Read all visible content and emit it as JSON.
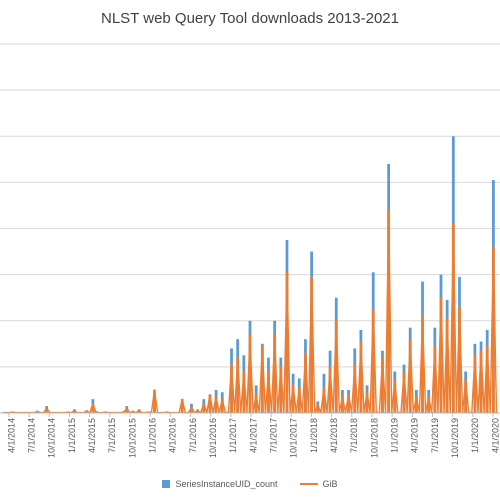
{
  "chart_data": {
    "type": "bar",
    "title": "NLST web Query Tool downloads 2013-2021",
    "x_tick_labels": [
      "4/1/2014",
      "7/1/2014",
      "10/1/2014",
      "1/1/2015",
      "4/1/2015",
      "7/1/2015",
      "10/1/2015",
      "1/1/2016",
      "4/1/2016",
      "7/1/2016",
      "10/1/2016",
      "1/1/2017",
      "4/1/2017",
      "7/1/2017",
      "10/1/2017",
      "1/1/2018",
      "4/1/2018",
      "7/1/2018",
      "10/1/2018",
      "1/1/2019",
      "4/1/2019",
      "7/1/2019",
      "10/1/2019",
      "1/1/2020",
      "4/1/2020"
    ],
    "ylim": [
      0,
      8
    ],
    "y_gridlines": [
      1,
      2,
      3,
      4,
      5,
      6,
      7,
      8
    ],
    "grid": true,
    "legend_position": "bottom",
    "colors": {
      "bar": "#5b9bd5",
      "line": "#ed7d31",
      "grid": "#d9d9d9",
      "axis": "#bfbfbf"
    },
    "series": [
      {
        "name": "SeriesInstanceUID_count",
        "kind": "bar",
        "values": [
          0.02,
          0.02,
          0.02,
          0.03,
          0.02,
          0.02,
          0.02,
          0.02,
          0.02,
          0.02,
          0.02,
          0.05,
          0.02,
          0.02,
          0.15,
          0.02,
          0.02,
          0.02,
          0.02,
          0.02,
          0.02,
          0.03,
          0.02,
          0.08,
          0.02,
          0.02,
          0.02,
          0.06,
          0.02,
          0.3,
          0.04,
          0.02,
          0.02,
          0.03,
          0.02,
          0.02,
          0.02,
          0.02,
          0.02,
          0.04,
          0.15,
          0.02,
          0.05,
          0.02,
          0.08,
          0.02,
          0.02,
          0.03,
          0.02,
          0.15,
          0.02,
          0.02,
          0.02,
          0.03,
          0.02,
          0.02,
          0.02,
          0.02,
          0.04,
          0.02,
          0.02,
          0.2,
          0.02,
          0.08,
          0.02,
          0.3,
          0.02,
          0.35,
          0.02,
          0.5,
          0.02,
          0.45,
          0.02,
          0.03,
          1.4,
          0.02,
          1.6,
          0.02,
          1.25,
          0.02,
          2.0,
          0.02,
          0.6,
          0.02,
          1.5,
          0.02,
          1.2,
          0.02,
          2.0,
          0.02,
          1.2,
          0.02,
          3.75,
          0.02,
          0.85,
          0.02,
          0.75,
          0.02,
          1.6,
          0.02,
          3.5,
          0.02,
          0.25,
          0.02,
          0.85,
          0.02,
          1.35,
          0.02,
          2.5,
          0.02,
          0.5,
          0.02,
          0.5,
          0.02,
          1.4,
          0.02,
          1.8,
          0.02,
          0.6,
          0.02,
          3.05,
          0.02,
          0.02,
          1.35,
          0.02,
          5.4,
          0.02,
          0.9,
          0.02,
          0.02,
          1.05,
          0.02,
          1.85,
          0.02,
          0.5,
          0.02,
          2.85,
          0.02,
          0.5,
          0.02,
          1.85,
          0.02,
          3.0,
          0.02,
          2.45,
          0.02,
          6.0,
          0.02,
          2.95,
          0.02,
          0.9,
          0.02,
          0.02,
          1.5,
          0.02,
          1.55,
          0.02,
          1.8,
          0.02,
          5.05,
          0.02
        ],
        "overlay_values": [
          0.01,
          0.01,
          0.01,
          0.02,
          0.01,
          0.01,
          0.01,
          0.01,
          0.01,
          0.01,
          0.01,
          0.03,
          0.01,
          0.01,
          0.1,
          0.01,
          0.01,
          0.01,
          0.01,
          0.01,
          0.01,
          0.02,
          0.01,
          0.05,
          0.01,
          0.01,
          0.01,
          0.04,
          0.01,
          0.2,
          0.02,
          0.01,
          0.01,
          0.02,
          0.01,
          0.01,
          0.01,
          0.01,
          0.01,
          0.02,
          0.1,
          0.01,
          0.03,
          0.01,
          0.05,
          0.01,
          0.01,
          0.02,
          0.01,
          0.5,
          0.01,
          0.01,
          0.01,
          0.02,
          0.01,
          0.01,
          0.01,
          0.01,
          0.3,
          0.01,
          0.01,
          0.12,
          0.01,
          0.05,
          0.01,
          0.2,
          0.01,
          0.4,
          0.01,
          0.35,
          0.01,
          0.3,
          0.01,
          0.02,
          1.05,
          0.01,
          1.2,
          0.01,
          0.9,
          0.01,
          1.7,
          0.01,
          0.4,
          0.01,
          1.45,
          0.01,
          0.9,
          0.01,
          1.7,
          0.01,
          1.0,
          0.01,
          3.05,
          0.01,
          0.6,
          0.01,
          0.55,
          0.01,
          1.3,
          0.01,
          2.95,
          0.01,
          0.18,
          0.01,
          0.55,
          0.01,
          1.0,
          0.01,
          2.0,
          0.01,
          0.35,
          0.01,
          0.4,
          0.01,
          1.05,
          0.01,
          1.55,
          0.01,
          0.45,
          0.01,
          2.25,
          0.01,
          0.01,
          1.2,
          0.01,
          4.4,
          0.01,
          0.7,
          0.01,
          0.01,
          0.9,
          0.01,
          1.6,
          0.01,
          0.35,
          0.01,
          2.1,
          0.01,
          0.35,
          0.01,
          1.45,
          0.01,
          2.5,
          0.01,
          2.05,
          0.01,
          4.1,
          0.01,
          2.3,
          0.01,
          0.7,
          0.01,
          0.01,
          1.25,
          0.01,
          1.35,
          0.01,
          1.45,
          0.01,
          3.6,
          0.01
        ]
      },
      {
        "name": "GiB",
        "kind": "line"
      }
    ]
  }
}
